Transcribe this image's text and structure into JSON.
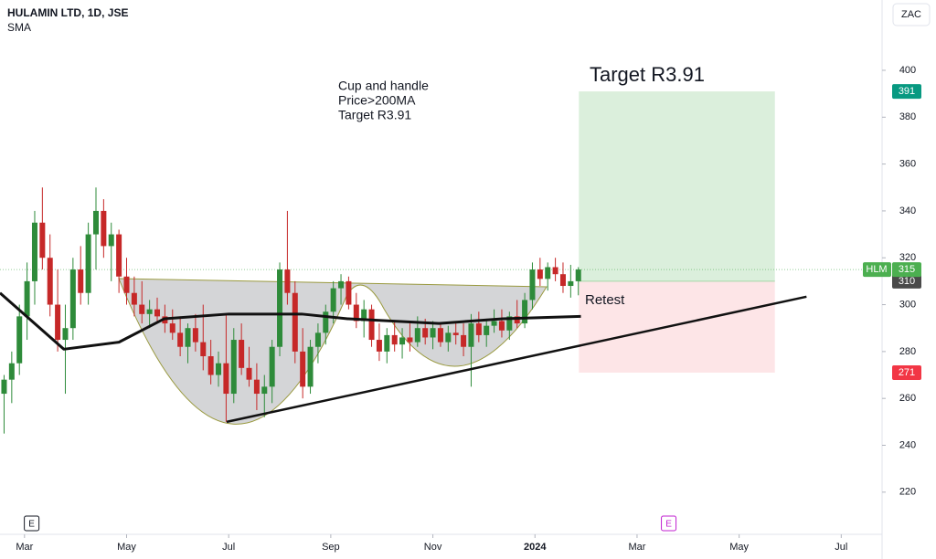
{
  "chart_data": {
    "type": "candlestick",
    "title": "HULAMIN LTD, 1D, JSE",
    "indicator": "SMA",
    "currency": "ZAC",
    "annotation": [
      "Cup and handle",
      "Price>200MA",
      "Target R3.91"
    ],
    "target_label": "Target R3.91",
    "retest_label": "Retest",
    "up_color": "#2e8b3a",
    "down_color": "#c62828",
    "xlim": [
      -0.48,
      16.8
    ],
    "ylim": [
      202,
      430
    ],
    "yticks": [
      220,
      240,
      260,
      280,
      300,
      320,
      340,
      360,
      380,
      400
    ],
    "xticks": [
      {
        "value": 0,
        "label": "Mar"
      },
      {
        "value": 2,
        "label": "May"
      },
      {
        "value": 4,
        "label": "Jul"
      },
      {
        "value": 6,
        "label": "Sep"
      },
      {
        "value": 8,
        "label": "Nov"
      },
      {
        "value": 10,
        "label": "2024"
      },
      {
        "value": 12,
        "label": "Mar"
      },
      {
        "value": 14,
        "label": "May"
      },
      {
        "value": 16,
        "label": "Jul"
      }
    ],
    "events": [
      {
        "x": 0.14,
        "label": "E"
      },
      {
        "x": 12.62,
        "label": "E"
      }
    ],
    "candles": [
      [
        -0.4,
        262,
        270,
        245,
        268
      ],
      [
        -0.25,
        268,
        280,
        258,
        275
      ],
      [
        -0.1,
        275,
        300,
        270,
        295
      ],
      [
        0.05,
        295,
        318,
        285,
        310
      ],
      [
        0.2,
        310,
        340,
        300,
        335
      ],
      [
        0.35,
        335,
        350,
        315,
        320
      ],
      [
        0.5,
        320,
        330,
        295,
        300
      ],
      [
        0.65,
        300,
        315,
        280,
        285
      ],
      [
        0.8,
        285,
        300,
        262,
        290
      ],
      [
        0.95,
        290,
        320,
        285,
        315
      ],
      [
        1.1,
        315,
        325,
        300,
        305
      ],
      [
        1.25,
        305,
        335,
        300,
        330
      ],
      [
        1.4,
        330,
        350,
        315,
        340
      ],
      [
        1.55,
        340,
        345,
        320,
        325
      ],
      [
        1.7,
        325,
        335,
        310,
        330
      ],
      [
        1.85,
        330,
        332,
        305,
        312
      ],
      [
        2.0,
        312,
        320,
        300,
        305
      ],
      [
        2.15,
        305,
        312,
        295,
        300
      ],
      [
        2.3,
        300,
        310,
        292,
        296
      ],
      [
        2.45,
        296,
        302,
        290,
        298
      ],
      [
        2.6,
        298,
        303,
        292,
        295
      ],
      [
        2.75,
        295,
        300,
        288,
        292
      ],
      [
        2.9,
        292,
        298,
        285,
        288
      ],
      [
        3.05,
        288,
        295,
        278,
        282
      ],
      [
        3.2,
        282,
        292,
        275,
        290
      ],
      [
        3.35,
        290,
        296,
        280,
        284
      ],
      [
        3.5,
        284,
        300,
        272,
        278
      ],
      [
        3.65,
        278,
        285,
        266,
        270
      ],
      [
        3.8,
        270,
        280,
        265,
        275
      ],
      [
        3.95,
        275,
        296,
        250,
        262
      ],
      [
        4.1,
        262,
        290,
        258,
        285
      ],
      [
        4.25,
        285,
        292,
        270,
        273
      ],
      [
        4.4,
        273,
        282,
        265,
        268
      ],
      [
        4.55,
        268,
        275,
        255,
        262
      ],
      [
        4.7,
        262,
        270,
        252,
        265
      ],
      [
        4.85,
        265,
        285,
        258,
        282
      ],
      [
        5.0,
        282,
        318,
        278,
        315
      ],
      [
        5.15,
        315,
        340,
        300,
        305
      ],
      [
        5.3,
        305,
        310,
        275,
        280
      ],
      [
        5.45,
        280,
        290,
        260,
        265
      ],
      [
        5.6,
        265,
        285,
        262,
        282
      ],
      [
        5.75,
        282,
        292,
        275,
        288
      ],
      [
        5.9,
        288,
        300,
        283,
        297
      ],
      [
        6.05,
        297,
        310,
        292,
        307
      ],
      [
        6.2,
        307,
        313,
        300,
        310
      ],
      [
        6.35,
        310,
        312,
        298,
        300
      ],
      [
        6.5,
        300,
        305,
        290,
        293
      ],
      [
        6.65,
        293,
        302,
        286,
        298
      ],
      [
        6.8,
        298,
        300,
        282,
        285
      ],
      [
        6.95,
        285,
        292,
        276,
        280
      ],
      [
        7.1,
        280,
        290,
        275,
        287
      ],
      [
        7.25,
        287,
        293,
        280,
        283
      ],
      [
        7.4,
        283,
        290,
        277,
        286
      ],
      [
        7.55,
        286,
        292,
        280,
        284
      ],
      [
        7.7,
        284,
        295,
        282,
        290
      ],
      [
        7.85,
        290,
        294,
        283,
        286
      ],
      [
        8.0,
        286,
        293,
        281,
        290
      ],
      [
        8.15,
        290,
        292,
        282,
        284
      ],
      [
        8.3,
        284,
        291,
        280,
        288
      ],
      [
        8.45,
        288,
        293,
        283,
        287
      ],
      [
        8.6,
        287,
        292,
        278,
        282
      ],
      [
        8.75,
        282,
        296,
        265,
        292
      ],
      [
        8.9,
        292,
        297,
        284,
        287
      ],
      [
        9.05,
        287,
        294,
        282,
        291
      ],
      [
        9.2,
        291,
        298,
        288,
        293
      ],
      [
        9.35,
        293,
        298,
        286,
        289
      ],
      [
        9.5,
        289,
        297,
        285,
        295
      ],
      [
        9.65,
        295,
        302,
        290,
        292
      ],
      [
        9.8,
        292,
        305,
        290,
        302
      ],
      [
        9.95,
        302,
        318,
        298,
        315
      ],
      [
        10.1,
        315,
        320,
        308,
        311
      ],
      [
        10.25,
        311,
        318,
        306,
        316
      ],
      [
        10.4,
        316,
        320,
        310,
        313
      ],
      [
        10.55,
        313,
        318,
        305,
        308
      ],
      [
        10.7,
        308,
        317,
        303,
        310
      ],
      [
        10.85,
        310,
        316,
        304,
        315
      ]
    ],
    "sma": {
      "name": "SMA",
      "color": "#111111",
      "x": [
        -0.48,
        0.77,
        1.85,
        2.74,
        4.0,
        5.43,
        6.33,
        8.12,
        9.37,
        10.9
      ],
      "values": [
        305,
        281,
        284,
        294,
        296,
        296,
        294,
        292,
        294,
        295
      ]
    },
    "trendline": {
      "x": [
        3.96,
        15.32
      ],
      "values": [
        250,
        303.4
      ]
    },
    "position": {
      "x": [
        10.86,
        14.7
      ],
      "target": 391,
      "entry": 310,
      "stop": 271
    },
    "last_price": {
      "label": "HLM",
      "value": 315
    }
  }
}
